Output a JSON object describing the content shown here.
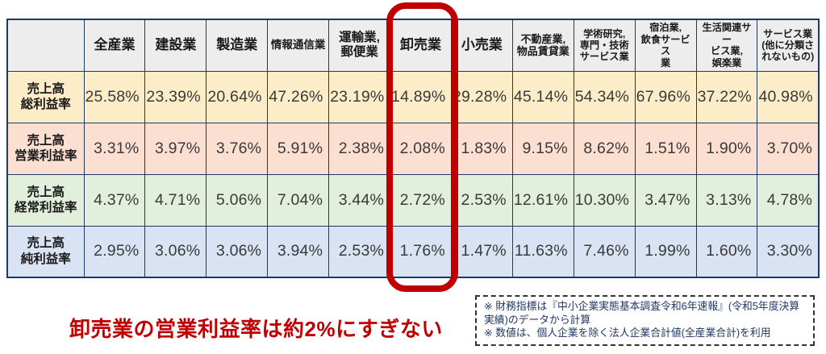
{
  "colors": {
    "border_navy": "#1f3864",
    "header_bg": "#ededed",
    "highlight_red": "#c00000",
    "note_text": "#1f3864",
    "row_bgs": [
      "#fcedc8",
      "#fbdfd0",
      "#e2efda",
      "#dae3f3"
    ]
  },
  "chart_data": {
    "type": "table",
    "title": "",
    "columns": [
      "全産業",
      "建設業",
      "製造業",
      "情報通信業",
      "運輸業,\n郵便業",
      "卸売業",
      "小売業",
      "不動産業,\n物品賃貸業",
      "学術研究,\n専門・技術\nサービス業",
      "宿泊業,\n飲食サービス\n業",
      "生活関連サー\nビス業,\n娯楽業",
      "サービス業\n(他に分類さ\nれないもの)"
    ],
    "rows": [
      {
        "label": "売上高\n総利益率",
        "values": [
          "25.58%",
          "23.39%",
          "20.64%",
          "47.26%",
          "23.19%",
          "14.89%",
          "29.28%",
          "45.14%",
          "54.34%",
          "67.96%",
          "37.22%",
          "40.98%"
        ]
      },
      {
        "label": "売上高\n営業利益率",
        "values": [
          "3.31%",
          "3.97%",
          "3.76%",
          "5.91%",
          "2.38%",
          "2.08%",
          "1.83%",
          "9.15%",
          "8.62%",
          "1.51%",
          "1.90%",
          "3.70%"
        ]
      },
      {
        "label": "売上高\n経常利益率",
        "values": [
          "4.37%",
          "4.71%",
          "5.06%",
          "7.04%",
          "3.44%",
          "2.72%",
          "2.53%",
          "12.61%",
          "10.30%",
          "3.47%",
          "3.13%",
          "4.78%"
        ]
      },
      {
        "label": "売上高\n純利益率",
        "values": [
          "2.95%",
          "3.06%",
          "3.06%",
          "3.94%",
          "2.53%",
          "1.76%",
          "1.47%",
          "11.63%",
          "7.46%",
          "1.99%",
          "1.60%",
          "3.30%"
        ]
      }
    ],
    "highlighted_column": "卸売業",
    "annotation": "卸売業の営業利益率は約2%にすぎない",
    "notes": [
      "※ 財務指標は『中小企業実態基本調査令和6年速報』(令和5年度決算実績)のデータから計算",
      "※ 数値は、個人企業を除く法人企業合計値(全産業合計)を利用"
    ]
  }
}
